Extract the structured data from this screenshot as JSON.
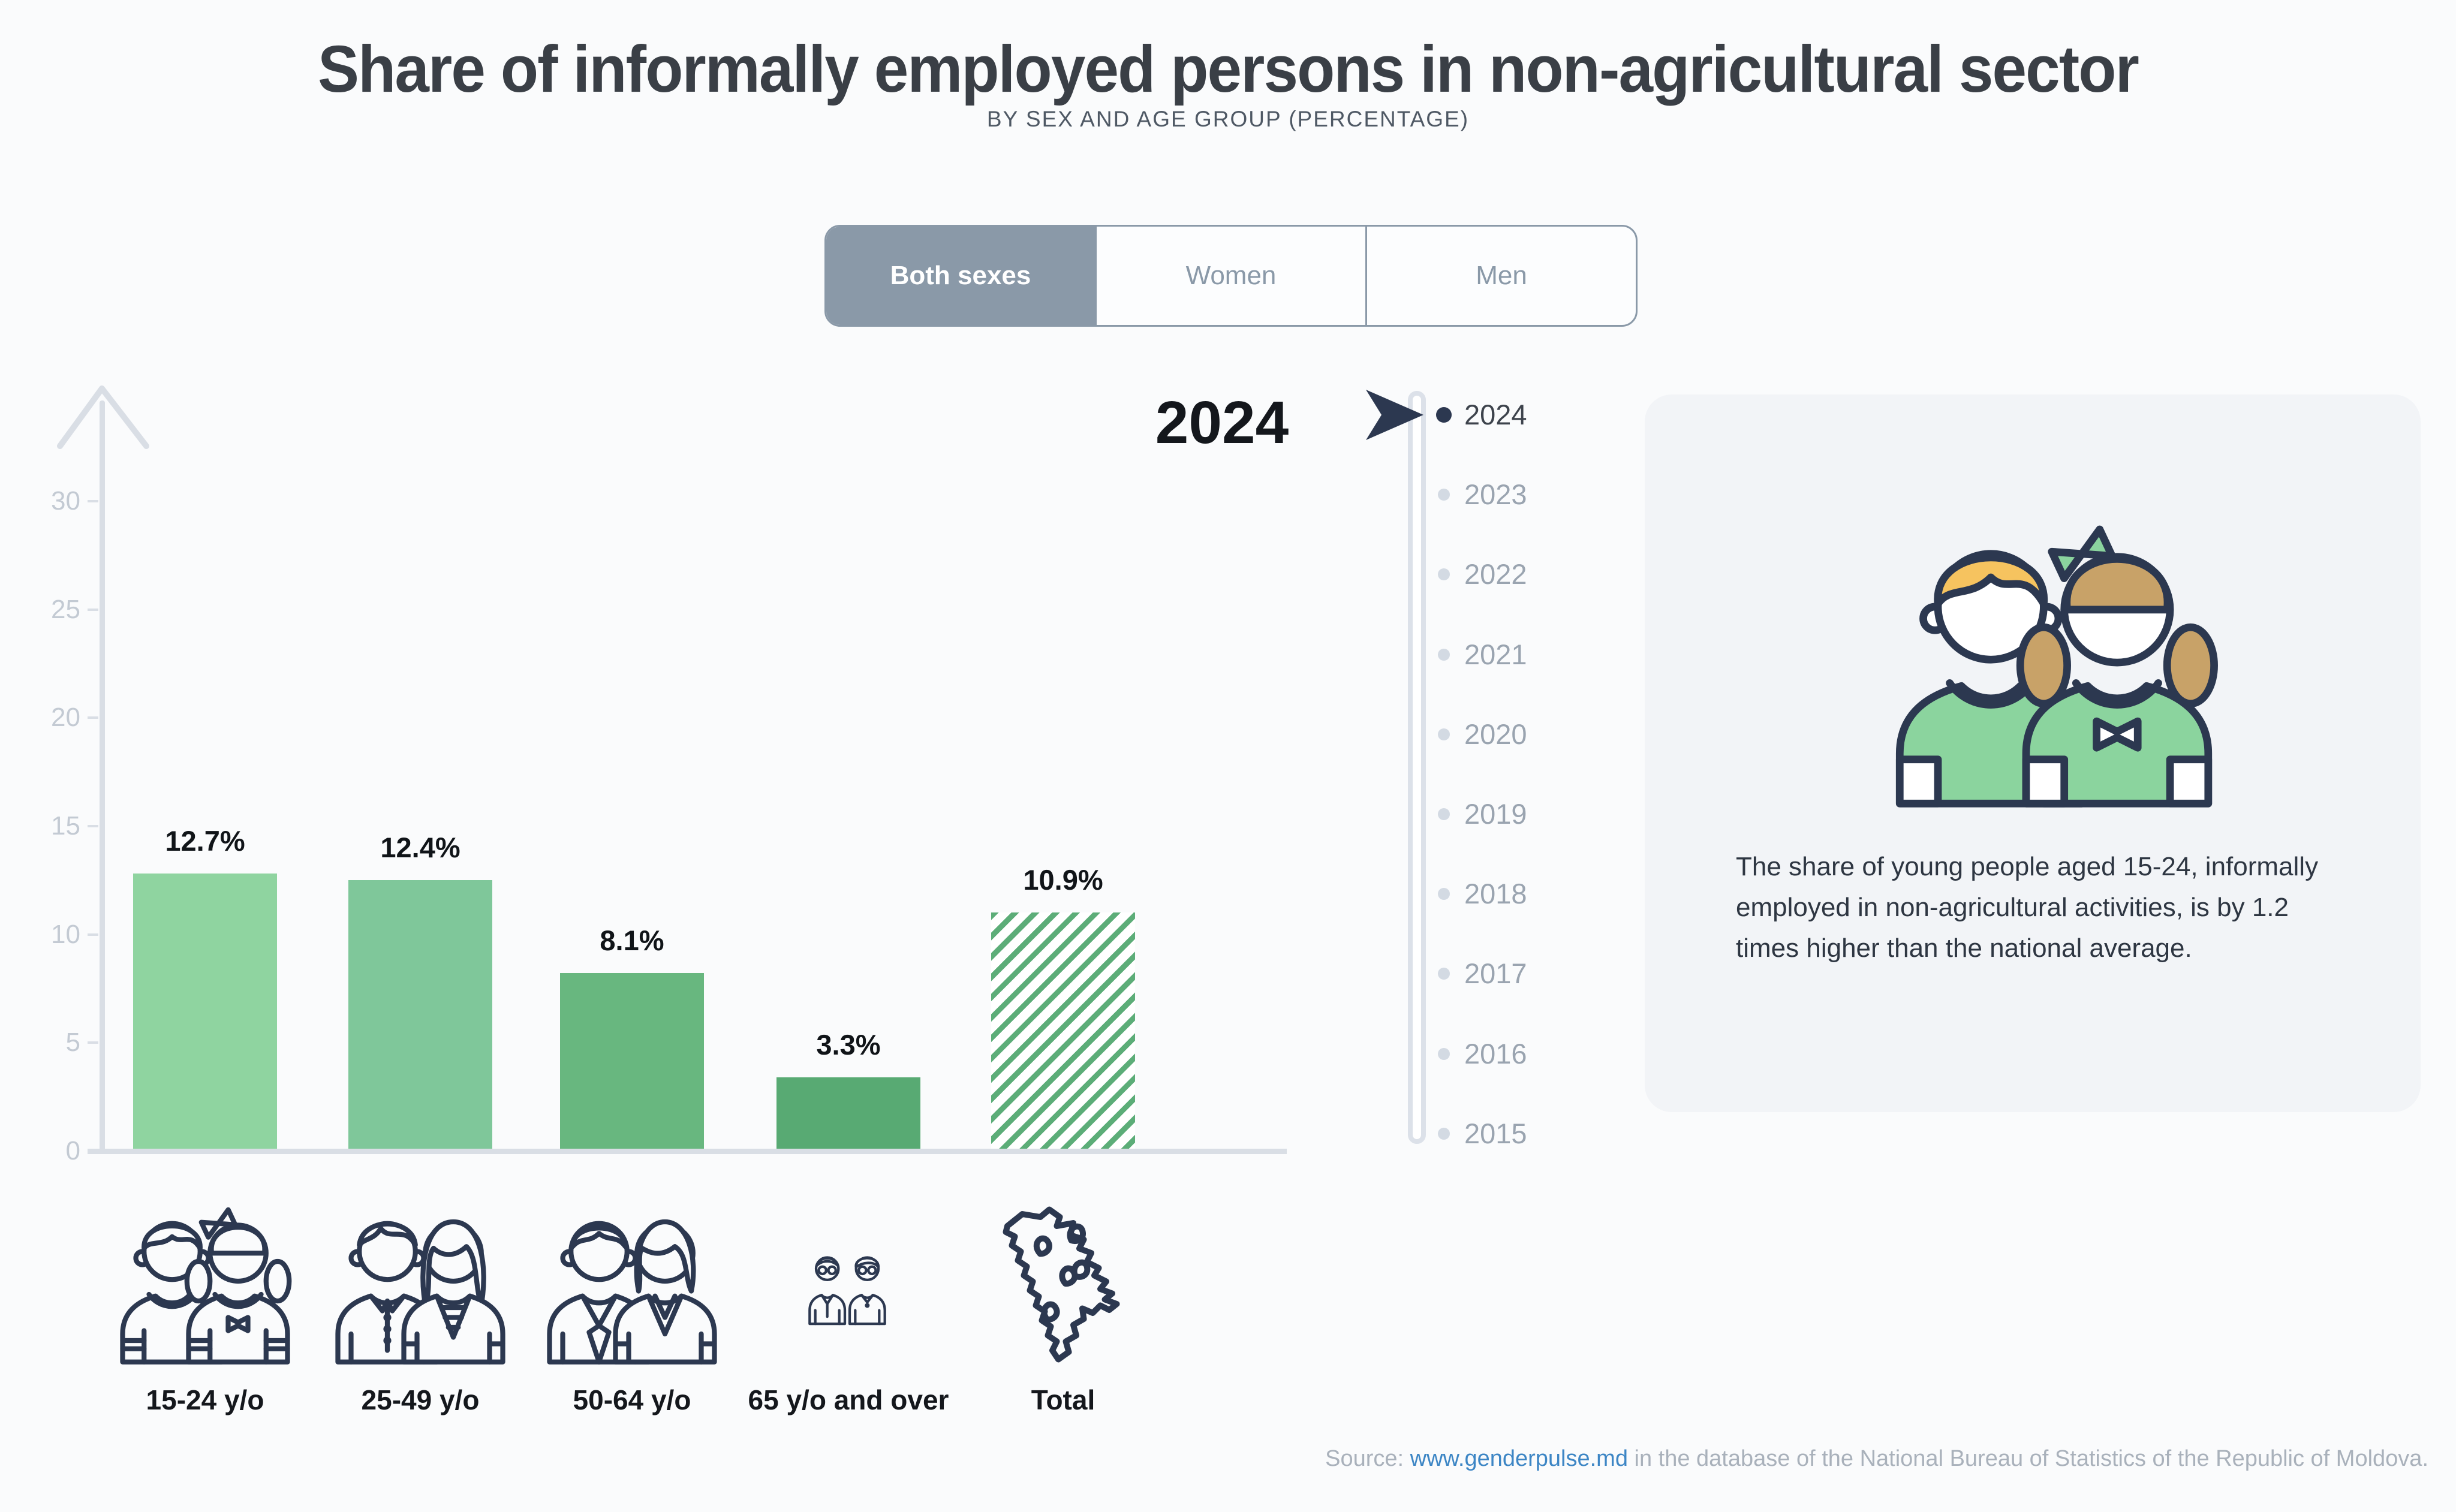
{
  "header": {
    "title": "Share of informally employed persons in non-agricultural sector",
    "subtitle": "BY SEX AND AGE GROUP (PERCENTAGE)"
  },
  "tabs": {
    "items": [
      {
        "label": "Both sexes",
        "active": true
      },
      {
        "label": "Women",
        "active": false
      },
      {
        "label": "Men",
        "active": false
      }
    ]
  },
  "chart_data": {
    "type": "bar",
    "title": "2024",
    "categories": [
      "15-24 y/o",
      "25-49 y/o",
      "50-64 y/o",
      "65 y/o and over",
      "Total"
    ],
    "values": [
      12.7,
      12.4,
      8.1,
      3.3,
      10.9
    ],
    "value_labels": [
      "12.7%",
      "12.4%",
      "8.1%",
      "3.3%",
      "10.9%"
    ],
    "bar_styles": [
      "solid",
      "solid",
      "solid",
      "solid",
      "hatched"
    ],
    "bar_colors": [
      "#8fd4a0",
      "#7fc79a",
      "#68b77f",
      "#58aa73",
      "#5cad78"
    ],
    "category_icons": [
      "young-couple-icon",
      "adult-couple-icon",
      "mature-couple-icon",
      "elderly-couple-icon",
      "moldova-map-icon"
    ],
    "xlabel": "",
    "ylabel": "",
    "ylim": [
      0,
      30
    ],
    "yticks": [
      0,
      5,
      10,
      15,
      20,
      25,
      30
    ],
    "grid": false,
    "legend": false
  },
  "timeline": {
    "selected_year": "2024",
    "years": [
      "2024",
      "2023",
      "2022",
      "2021",
      "2020",
      "2019",
      "2018",
      "2017",
      "2016",
      "2015"
    ]
  },
  "infobox": {
    "illustration": "boy-and-girl-illustration",
    "text": "The share of young people aged 15-24, informally employed in non-agricultural activities, is by 1.2 times higher than the national average."
  },
  "source": {
    "prefix": "Source: ",
    "link_text": "www.genderpulse.md",
    "suffix": " in the database of the National Bureau of Statistics of the Republic of Moldova."
  },
  "colors": {
    "accent_navy": "#2c3850",
    "tab_slate": "#8a99a8",
    "axis_gray": "#d9dee5",
    "tick_label_gray": "#c3cad3",
    "card_bg": "#f2f4f7",
    "link_blue": "#3d86c5",
    "year_active": "#3d434c",
    "year_inactive": "#9aa4b0",
    "illustration_green": "#8bd49e",
    "boy_hair": "#f6c35f",
    "girl_hair": "#c8a268"
  }
}
